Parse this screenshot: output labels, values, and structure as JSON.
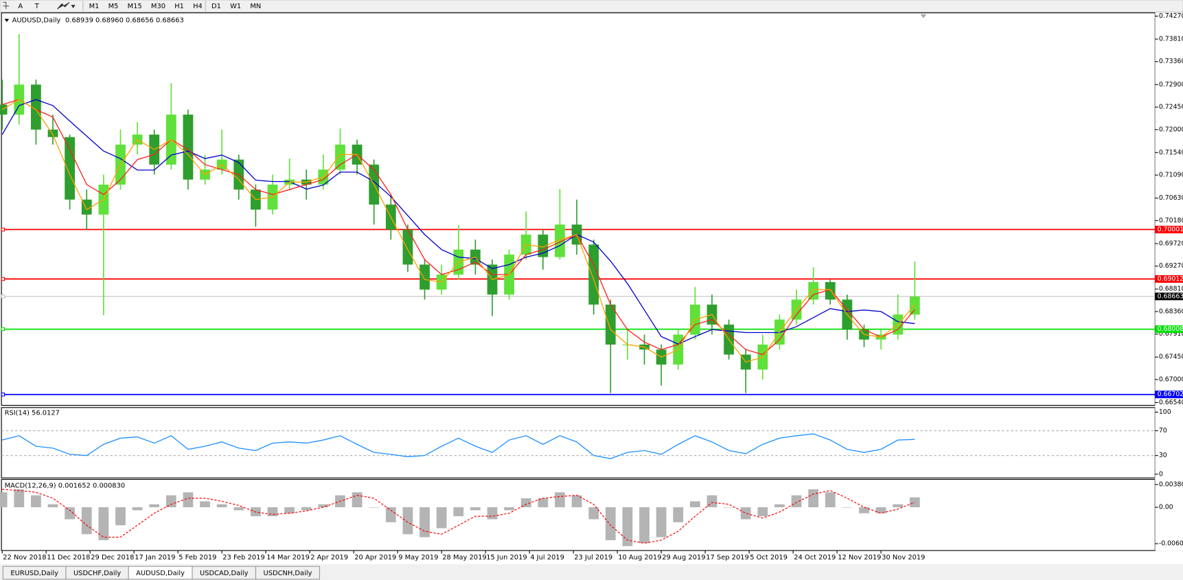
{
  "toolbar": {
    "tools": [
      "A",
      "T"
    ],
    "timeframes": [
      "M1",
      "M5",
      "M15",
      "M30",
      "H1",
      "H4",
      "D1",
      "W1",
      "MN"
    ]
  },
  "tabs": [
    {
      "label": "EURUSD,Daily",
      "active": false
    },
    {
      "label": "USDCHF,Daily",
      "active": false
    },
    {
      "label": "AUDUSD,Daily",
      "active": true
    },
    {
      "label": "USDCAD,Daily",
      "active": false
    },
    {
      "label": "USDCNH,Daily",
      "active": false
    }
  ],
  "chart_data": [
    {
      "type": "candlestick",
      "title": "AUDUSD,Daily",
      "subtitle": "0.68939 0.68960 0.68656 0.68663",
      "up_color": "#5fe03a",
      "down_color": "#2e9e2e",
      "xlim": [
        -0.2,
        341.1
      ],
      "xticks": [
        {
          "value": 0,
          "label": "22 Nov 2018"
        },
        {
          "value": 13,
          "label": "11 Dec 2018"
        },
        {
          "value": 26,
          "label": "29 Dec 2018"
        },
        {
          "value": 39,
          "label": "17 Jan 2019"
        },
        {
          "value": 52,
          "label": "5 Feb 2019"
        },
        {
          "value": 65,
          "label": "23 Feb 2019"
        },
        {
          "value": 78,
          "label": "14 Mar 2019"
        },
        {
          "value": 91,
          "label": "2 Apr 2019"
        },
        {
          "value": 104,
          "label": "20 Apr 2019"
        },
        {
          "value": 117,
          "label": "9 May 2019"
        },
        {
          "value": 130,
          "label": "28 May 2019"
        },
        {
          "value": 143,
          "label": "15 Jun 2019"
        },
        {
          "value": 156,
          "label": "4 Jul 2019"
        },
        {
          "value": 169,
          "label": "23 Jul 2019"
        },
        {
          "value": 182,
          "label": "10 Aug 2019"
        },
        {
          "value": 195,
          "label": "29 Aug 2019"
        },
        {
          "value": 208,
          "label": "17 Sep 2019"
        },
        {
          "value": 221,
          "label": "5 Oct 2019"
        },
        {
          "value": 234,
          "label": "24 Oct 2019"
        },
        {
          "value": 247,
          "label": "12 Nov 2019"
        },
        {
          "value": 260,
          "label": "30 Nov 2019"
        }
      ],
      "ylim": [
        0.665,
        0.7432
      ],
      "yticks": [
        {
          "value": 0.7427,
          "label": "0.74270"
        },
        {
          "value": 0.7381,
          "label": "0.73810"
        },
        {
          "value": 0.7336,
          "label": "0.73360"
        },
        {
          "value": 0.729,
          "label": "0.72900"
        },
        {
          "value": 0.7245,
          "label": "0.72450"
        },
        {
          "value": 0.72,
          "label": "0.72000"
        },
        {
          "value": 0.7154,
          "label": "0.71540"
        },
        {
          "value": 0.7109,
          "label": "0.71090"
        },
        {
          "value": 0.7063,
          "label": "0.70630"
        },
        {
          "value": 0.7018,
          "label": "0.70180"
        },
        {
          "value": 0.6972,
          "label": "0.69720"
        },
        {
          "value": 0.6927,
          "label": "0.69270"
        },
        {
          "value": 0.6881,
          "label": "0.68810"
        },
        {
          "value": 0.6836,
          "label": "0.68360"
        },
        {
          "value": 0.6791,
          "label": "0.67910"
        },
        {
          "value": 0.6745,
          "label": "0.67450"
        },
        {
          "value": 0.67,
          "label": "0.67000"
        },
        {
          "value": 0.6654,
          "label": "0.66540"
        }
      ],
      "levels": [
        {
          "value": 0.68663,
          "label": "0.68663",
          "color": "#c0c0c0",
          "label_color": "#000000"
        },
        {
          "value": 0.70001,
          "label": "0.70001",
          "color": "#ff0000",
          "label_color": "#ff0000"
        },
        {
          "value": 0.69012,
          "label": "0.69012",
          "color": "#ff0000",
          "label_color": "#ff0000"
        },
        {
          "value": 0.68008,
          "label": "0.68008",
          "color": "#00e000",
          "label_color": "#00e000"
        },
        {
          "value": 0.66702,
          "label": "0.66702",
          "color": "#0000ff",
          "label_color": "#0000ff"
        }
      ],
      "x": [
        0,
        5,
        10,
        15,
        20,
        25,
        30,
        35,
        40,
        45,
        50,
        55,
        60,
        65,
        70,
        75,
        80,
        85,
        90,
        95,
        100,
        105,
        110,
        115,
        120,
        125,
        130,
        135,
        140,
        145,
        150,
        155,
        160,
        165,
        170,
        175,
        180,
        185,
        190,
        195,
        200,
        205,
        210,
        215,
        220,
        225,
        230,
        235,
        240,
        245,
        250,
        255,
        260,
        265,
        270
      ],
      "ohlc": [
        [
          0.725,
          0.73,
          0.72,
          0.723
        ],
        [
          0.723,
          0.7391,
          0.721,
          0.729
        ],
        [
          0.729,
          0.73,
          0.717,
          0.72
        ],
        [
          0.72,
          0.723,
          0.717,
          0.7185
        ],
        [
          0.7185,
          0.719,
          0.704,
          0.706
        ],
        [
          0.706,
          0.708,
          0.7,
          0.703
        ],
        [
          0.703,
          0.711,
          0.6829,
          0.709
        ],
        [
          0.709,
          0.72,
          0.708,
          0.717
        ],
        [
          0.717,
          0.7215,
          0.715,
          0.719
        ],
        [
          0.719,
          0.72,
          0.711,
          0.713
        ],
        [
          0.713,
          0.7293,
          0.712,
          0.723
        ],
        [
          0.723,
          0.724,
          0.708,
          0.71
        ],
        [
          0.71,
          0.715,
          0.709,
          0.712
        ],
        [
          0.712,
          0.72,
          0.711,
          0.714
        ],
        [
          0.714,
          0.715,
          0.706,
          0.708
        ],
        [
          0.708,
          0.709,
          0.7006,
          0.704
        ],
        [
          0.704,
          0.711,
          0.703,
          0.709
        ],
        [
          0.709,
          0.7142,
          0.708,
          0.71
        ],
        [
          0.71,
          0.712,
          0.706,
          0.709
        ],
        [
          0.709,
          0.715,
          0.708,
          0.712
        ],
        [
          0.712,
          0.7202,
          0.711,
          0.717
        ],
        [
          0.717,
          0.718,
          0.711,
          0.713
        ],
        [
          0.713,
          0.714,
          0.701,
          0.705
        ],
        [
          0.705,
          0.707,
          0.698,
          0.7
        ],
        [
          0.7,
          0.701,
          0.6915,
          0.693
        ],
        [
          0.693,
          0.694,
          0.686,
          0.688
        ],
        [
          0.688,
          0.693,
          0.687,
          0.691
        ],
        [
          0.691,
          0.7009,
          0.69,
          0.696
        ],
        [
          0.696,
          0.698,
          0.691,
          0.693
        ],
        [
          0.693,
          0.694,
          0.6827,
          0.687
        ],
        [
          0.687,
          0.696,
          0.686,
          0.695
        ],
        [
          0.695,
          0.7036,
          0.694,
          0.699
        ],
        [
          0.699,
          0.7,
          0.692,
          0.6945
        ],
        [
          0.6945,
          0.7081,
          0.694,
          0.701
        ],
        [
          0.701,
          0.706,
          0.695,
          0.697
        ],
        [
          0.697,
          0.698,
          0.683,
          0.685
        ],
        [
          0.685,
          0.686,
          0.6673,
          0.677
        ],
        [
          0.677,
          0.68,
          0.674,
          0.677
        ],
        [
          0.677,
          0.679,
          0.673,
          0.676
        ],
        [
          0.676,
          0.677,
          0.6688,
          0.673
        ],
        [
          0.673,
          0.68,
          0.672,
          0.679
        ],
        [
          0.679,
          0.6885,
          0.678,
          0.685
        ],
        [
          0.685,
          0.687,
          0.679,
          0.681
        ],
        [
          0.681,
          0.682,
          0.674,
          0.675
        ],
        [
          0.675,
          0.676,
          0.6673,
          0.672
        ],
        [
          0.672,
          0.679,
          0.67,
          0.677
        ],
        [
          0.677,
          0.683,
          0.676,
          0.682
        ],
        [
          0.682,
          0.688,
          0.681,
          0.686
        ],
        [
          0.686,
          0.6925,
          0.685,
          0.6895
        ],
        [
          0.6895,
          0.69,
          0.685,
          0.686
        ],
        [
          0.686,
          0.687,
          0.678,
          0.68
        ],
        [
          0.68,
          0.681,
          0.6765,
          0.678
        ],
        [
          0.678,
          0.68,
          0.676,
          0.679
        ],
        [
          0.679,
          0.687,
          0.678,
          0.683
        ],
        [
          0.683,
          0.6936,
          0.682,
          0.6866
        ]
      ],
      "moving_averages": [
        {
          "color": "#0000cc",
          "values": [
            0.719,
            0.7248,
            0.726,
            0.7248,
            0.7217,
            0.7187,
            0.7157,
            0.7142,
            0.7119,
            0.7119,
            0.7149,
            0.7157,
            0.7142,
            0.7149,
            0.7134,
            0.7099,
            0.7096,
            0.7096,
            0.7081,
            0.7089,
            0.7115,
            0.7115,
            0.7096,
            0.7066,
            0.7028,
            0.699,
            0.696,
            0.6945,
            0.6942,
            0.6922,
            0.693,
            0.6945,
            0.6953,
            0.6968,
            0.699,
            0.6975,
            0.6937,
            0.6892,
            0.6839,
            0.6786,
            0.6771,
            0.6786,
            0.68,
            0.6797,
            0.6794,
            0.6794,
            0.6794,
            0.6806,
            0.6824,
            0.6842,
            0.6836,
            0.6839,
            0.6836,
            0.6816,
            0.6812
          ]
        },
        {
          "color": "#ff2020",
          "values": [
            0.725,
            0.726,
            0.724,
            0.7225,
            0.716,
            0.709,
            0.707,
            0.71,
            0.714,
            0.715,
            0.718,
            0.716,
            0.713,
            0.712,
            0.711,
            0.708,
            0.707,
            0.708,
            0.709,
            0.71,
            0.713,
            0.715,
            0.712,
            0.707,
            0.7,
            0.694,
            0.691,
            0.692,
            0.6935,
            0.691,
            0.691,
            0.695,
            0.696,
            0.6975,
            0.699,
            0.693,
            0.685,
            0.68,
            0.6775,
            0.676,
            0.677,
            0.681,
            0.682,
            0.679,
            0.676,
            0.675,
            0.678,
            0.683,
            0.687,
            0.688,
            0.684,
            0.68,
            0.6785,
            0.68,
            0.684
          ]
        },
        {
          "color": "#ffa000",
          "values": [
            0.724,
            0.726,
            0.724,
            0.719,
            0.711,
            0.704,
            0.706,
            0.713,
            0.718,
            0.716,
            0.718,
            0.715,
            0.711,
            0.713,
            0.71,
            0.706,
            0.7065,
            0.7095,
            0.7095,
            0.7105,
            0.715,
            0.715,
            0.709,
            0.7025,
            0.696,
            0.69,
            0.6895,
            0.6935,
            0.6945,
            0.69,
            0.691,
            0.697,
            0.6965,
            0.698,
            0.699,
            0.69,
            0.68,
            0.677,
            0.6765,
            0.6745,
            0.676,
            0.682,
            0.683,
            0.678,
            0.6735,
            0.6745,
            0.6795,
            0.684,
            0.688,
            0.688,
            0.683,
            0.679,
            0.6785,
            0.681,
            0.685
          ]
        }
      ]
    },
    {
      "type": "line",
      "title": "RSI(14) 56.0127",
      "color": "#1e90ff",
      "ylim": [
        0,
        100
      ],
      "yticks": [
        100,
        70,
        30,
        0
      ],
      "levels": [
        70,
        30
      ],
      "values": [
        55,
        62,
        45,
        42,
        32,
        30,
        48,
        58,
        60,
        50,
        62,
        40,
        45,
        52,
        42,
        38,
        50,
        52,
        50,
        55,
        62,
        48,
        35,
        32,
        28,
        30,
        45,
        58,
        45,
        35,
        55,
        62,
        48,
        62,
        52,
        30,
        25,
        35,
        38,
        32,
        48,
        62,
        52,
        38,
        33,
        48,
        58,
        62,
        65,
        55,
        40,
        35,
        40,
        55,
        56
      ]
    },
    {
      "type": "macd",
      "title": "MACD(12,26,9) 0.001652 0.000830",
      "ylim": [
        -0.0071,
        0.0044
      ],
      "yticks": [
        0.003804,
        {
          "value": 0,
          "label": "0.00"
        },
        -0.006081
      ],
      "histogram": {
        "color": "#b4b4b4",
        "values": [
          0.0025,
          0.003,
          0.002,
          0.0005,
          -0.002,
          -0.0045,
          -0.0055,
          -0.003,
          -0.0005,
          0.0005,
          0.002,
          0.0025,
          0.001,
          0.0005,
          -0.0005,
          -0.0015,
          -0.0015,
          -0.001,
          -0.0005,
          0.0005,
          0.002,
          0.0025,
          0,
          -0.0025,
          -0.0045,
          -0.005,
          -0.0035,
          -0.0015,
          -0.0005,
          -0.002,
          -0.0005,
          0.0015,
          0.0015,
          0.0025,
          0.002,
          -0.002,
          -0.0055,
          -0.0065,
          -0.006,
          -0.005,
          -0.0025,
          0.001,
          0.002,
          0,
          -0.002,
          -0.0015,
          0.0005,
          0.002,
          0.003,
          0.0025,
          0,
          -0.001,
          -0.001,
          0.0005,
          0.00165
        ]
      },
      "signal": {
        "color": "#ff0000",
        "values": [
          0.003,
          0.0028,
          0.0025,
          0.0015,
          -0.0005,
          -0.003,
          -0.005,
          -0.005,
          -0.003,
          -0.001,
          0.0005,
          0.0015,
          0.0015,
          0.001,
          0.0003,
          -0.0008,
          -0.0012,
          -0.001,
          -0.0006,
          0,
          0.001,
          0.002,
          0.0015,
          -0.0005,
          -0.0025,
          -0.004,
          -0.0045,
          -0.003,
          -0.0015,
          -0.0015,
          -0.001,
          0.0005,
          0.0015,
          0.0018,
          0.002,
          0.0005,
          -0.003,
          -0.0055,
          -0.006,
          -0.0055,
          -0.004,
          -0.0015,
          0.0008,
          0.0005,
          -0.001,
          -0.0018,
          -0.0008,
          0.0008,
          0.0022,
          0.0028,
          0.0015,
          0,
          -0.001,
          -0.0003,
          0.00083
        ]
      }
    }
  ]
}
